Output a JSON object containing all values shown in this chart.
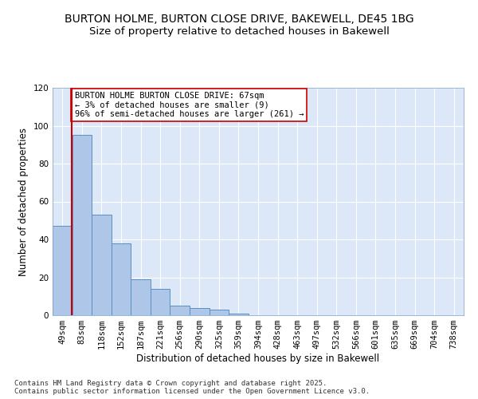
{
  "title_line1": "BURTON HOLME, BURTON CLOSE DRIVE, BAKEWELL, DE45 1BG",
  "title_line2": "Size of property relative to detached houses in Bakewell",
  "xlabel": "Distribution of detached houses by size in Bakewell",
  "ylabel": "Number of detached properties",
  "bar_labels": [
    "49sqm",
    "83sqm",
    "118sqm",
    "152sqm",
    "187sqm",
    "221sqm",
    "256sqm",
    "290sqm",
    "325sqm",
    "359sqm",
    "394sqm",
    "428sqm",
    "463sqm",
    "497sqm",
    "532sqm",
    "566sqm",
    "601sqm",
    "635sqm",
    "669sqm",
    "704sqm",
    "738sqm"
  ],
  "bar_values": [
    47,
    95,
    53,
    38,
    19,
    14,
    5,
    4,
    3,
    1,
    0,
    0,
    0,
    0,
    0,
    0,
    0,
    0,
    0,
    0,
    0
  ],
  "bar_color": "#aec6e8",
  "bar_edge_color": "#5a8fc2",
  "annotation_box_text": "BURTON HOLME BURTON CLOSE DRIVE: 67sqm\n← 3% of detached houses are smaller (9)\n96% of semi-detached houses are larger (261) →",
  "vline_x": 0.48,
  "vline_color": "#cc0000",
  "ylim": [
    0,
    120
  ],
  "yticks": [
    0,
    20,
    40,
    60,
    80,
    100,
    120
  ],
  "background_color": "#dce8f8",
  "grid_color": "#ffffff",
  "footer_text": "Contains HM Land Registry data © Crown copyright and database right 2025.\nContains public sector information licensed under the Open Government Licence v3.0.",
  "title_fontsize": 10,
  "subtitle_fontsize": 9.5,
  "axis_label_fontsize": 8.5,
  "tick_fontsize": 7.5,
  "annotation_fontsize": 7.5,
  "footer_fontsize": 6.5
}
